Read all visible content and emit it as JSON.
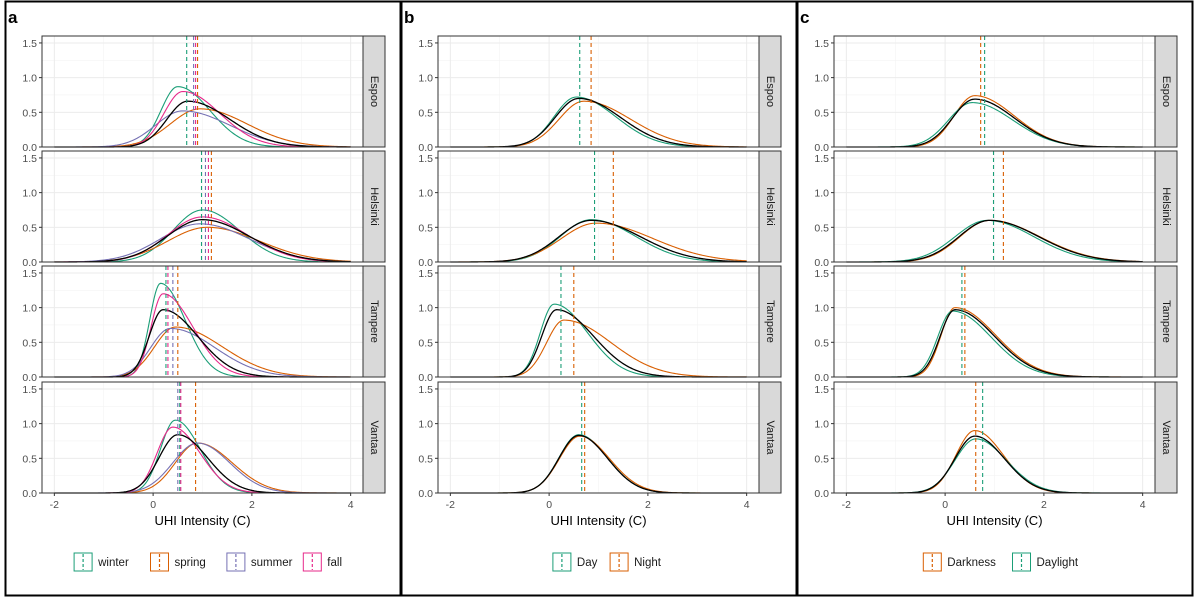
{
  "colors": {
    "panel_bg": "#ffffff",
    "grid": "#ebebeb",
    "strip_bg": "#d9d9d9",
    "border": "#333333",
    "overall": "#000000",
    "teal": "#1b9e77",
    "orange": "#d95f02",
    "purple": "#7570b3",
    "magenta": "#e7298a"
  },
  "chart_data": [
    {
      "type": "line",
      "panel_label": "a",
      "xlabel": "UHI Intensity (C)",
      "ylabel": "",
      "xlim": [
        -2,
        4
      ],
      "ylim": [
        0,
        1.5
      ],
      "x_ticks": [
        "-2",
        "0",
        "2",
        "4"
      ],
      "y_ticks": [
        "0.0",
        "0.5",
        "1.0",
        "1.5"
      ],
      "grid": true,
      "legend_position": "bottom",
      "legend": [
        {
          "label": "winter",
          "color": "#1b9e77"
        },
        {
          "label": "spring",
          "color": "#d95f02"
        },
        {
          "label": "summer",
          "color": "#7570b3"
        },
        {
          "label": "fall",
          "color": "#e7298a"
        }
      ],
      "facets": [
        {
          "label": "Espoo",
          "overall": {
            "mu": 0.7,
            "peak": 0.66,
            "sl": 0.42,
            "sr": 0.85
          },
          "series": [
            {
              "name": "winter",
              "color": "#1b9e77",
              "mu": 0.5,
              "peak": 0.87,
              "sl": 0.34,
              "sr": 0.65,
              "mean": 0.68
            },
            {
              "name": "spring",
              "color": "#d95f02",
              "mu": 0.95,
              "peak": 0.55,
              "sl": 0.6,
              "sr": 0.95,
              "mean": 0.9
            },
            {
              "name": "summer",
              "color": "#7570b3",
              "mu": 0.6,
              "peak": 0.52,
              "sl": 0.55,
              "sr": 0.95,
              "mean": 0.82
            },
            {
              "name": "fall",
              "color": "#e7298a",
              "mu": 0.6,
              "peak": 0.8,
              "sl": 0.38,
              "sr": 0.75,
              "mean": 0.86
            }
          ]
        },
        {
          "label": "Helsinki",
          "overall": {
            "mu": 1.0,
            "peak": 0.61,
            "sl": 0.72,
            "sr": 0.95
          },
          "series": [
            {
              "name": "winter",
              "color": "#1b9e77",
              "mu": 1.0,
              "peak": 0.75,
              "sl": 0.6,
              "sr": 0.75,
              "mean": 0.98
            },
            {
              "name": "spring",
              "color": "#d95f02",
              "mu": 1.1,
              "peak": 0.5,
              "sl": 0.8,
              "sr": 1.05,
              "mean": 1.18
            },
            {
              "name": "summer",
              "color": "#7570b3",
              "mu": 0.95,
              "peak": 0.55,
              "sl": 0.8,
              "sr": 1.0,
              "mean": 1.06
            },
            {
              "name": "fall",
              "color": "#e7298a",
              "mu": 1.0,
              "peak": 0.65,
              "sl": 0.7,
              "sr": 0.9,
              "mean": 1.12
            }
          ]
        },
        {
          "label": "Tampere",
          "overall": {
            "mu": 0.2,
            "peak": 0.97,
            "sl": 0.28,
            "sr": 0.7
          },
          "series": [
            {
              "name": "winter",
              "color": "#1b9e77",
              "mu": 0.15,
              "peak": 1.35,
              "sl": 0.22,
              "sr": 0.5,
              "mean": 0.26
            },
            {
              "name": "spring",
              "color": "#d95f02",
              "mu": 0.45,
              "peak": 0.72,
              "sl": 0.42,
              "sr": 0.95,
              "mean": 0.5
            },
            {
              "name": "summer",
              "color": "#7570b3",
              "mu": 0.35,
              "peak": 0.7,
              "sl": 0.4,
              "sr": 0.9,
              "mean": 0.4
            },
            {
              "name": "fall",
              "color": "#e7298a",
              "mu": 0.2,
              "peak": 1.2,
              "sl": 0.24,
              "sr": 0.6,
              "mean": 0.3
            }
          ]
        },
        {
          "label": "Vantaa",
          "overall": {
            "mu": 0.5,
            "peak": 0.84,
            "sl": 0.38,
            "sr": 0.6
          },
          "series": [
            {
              "name": "winter",
              "color": "#1b9e77",
              "mu": 0.45,
              "peak": 1.05,
              "sl": 0.3,
              "sr": 0.5,
              "mean": 0.54
            },
            {
              "name": "spring",
              "color": "#d95f02",
              "mu": 0.9,
              "peak": 0.72,
              "sl": 0.45,
              "sr": 0.7,
              "mean": 0.86
            },
            {
              "name": "summer",
              "color": "#7570b3",
              "mu": 0.9,
              "peak": 0.72,
              "sl": 0.5,
              "sr": 0.65,
              "mean": 0.5
            },
            {
              "name": "fall",
              "color": "#e7298a",
              "mu": 0.4,
              "peak": 0.95,
              "sl": 0.32,
              "sr": 0.55,
              "mean": 0.56
            }
          ]
        }
      ]
    },
    {
      "type": "line",
      "panel_label": "b",
      "xlabel": "UHI Intensity (C)",
      "ylabel": "",
      "xlim": [
        -2,
        4
      ],
      "ylim": [
        0,
        1.5
      ],
      "x_ticks": [
        "-2",
        "0",
        "2",
        "4"
      ],
      "y_ticks": [
        "0.0",
        "0.5",
        "1.0",
        "1.5"
      ],
      "grid": true,
      "legend_position": "bottom",
      "legend": [
        {
          "label": "Day",
          "color": "#1b9e77"
        },
        {
          "label": "Night",
          "color": "#d95f02"
        }
      ],
      "facets": [
        {
          "label": "Espoo",
          "overall": {
            "mu": 0.6,
            "peak": 0.7,
            "sl": 0.48,
            "sr": 0.85
          },
          "series": [
            {
              "name": "Day",
              "color": "#1b9e77",
              "mu": 0.55,
              "peak": 0.72,
              "sl": 0.45,
              "sr": 0.8,
              "mean": 0.62
            },
            {
              "name": "Night",
              "color": "#d95f02",
              "mu": 0.7,
              "peak": 0.66,
              "sl": 0.5,
              "sr": 0.95,
              "mean": 0.85
            }
          ]
        },
        {
          "label": "Helsinki",
          "overall": {
            "mu": 0.85,
            "peak": 0.6,
            "sl": 0.65,
            "sr": 1.0
          },
          "series": [
            {
              "name": "Day",
              "color": "#1b9e77",
              "mu": 0.85,
              "peak": 0.61,
              "sl": 0.62,
              "sr": 0.9,
              "mean": 0.92
            },
            {
              "name": "Night",
              "color": "#d95f02",
              "mu": 0.95,
              "peak": 0.56,
              "sl": 0.7,
              "sr": 1.15,
              "mean": 1.3
            }
          ]
        },
        {
          "label": "Tampere",
          "overall": {
            "mu": 0.15,
            "peak": 0.97,
            "sl": 0.3,
            "sr": 0.75
          },
          "series": [
            {
              "name": "Day",
              "color": "#1b9e77",
              "mu": 0.1,
              "peak": 1.05,
              "sl": 0.28,
              "sr": 0.68,
              "mean": 0.24
            },
            {
              "name": "Night",
              "color": "#d95f02",
              "mu": 0.3,
              "peak": 0.82,
              "sl": 0.35,
              "sr": 0.95,
              "mean": 0.5
            }
          ]
        },
        {
          "label": "Vantaa",
          "overall": {
            "mu": 0.6,
            "peak": 0.83,
            "sl": 0.4,
            "sr": 0.58
          },
          "series": [
            {
              "name": "Day",
              "color": "#1b9e77",
              "mu": 0.6,
              "peak": 0.84,
              "sl": 0.4,
              "sr": 0.58,
              "mean": 0.66
            },
            {
              "name": "Night",
              "color": "#d95f02",
              "mu": 0.62,
              "peak": 0.82,
              "sl": 0.41,
              "sr": 0.6,
              "mean": 0.72
            }
          ]
        }
      ]
    },
    {
      "type": "line",
      "panel_label": "c",
      "xlabel": "UHI Intensity (C)",
      "ylabel": "",
      "xlim": [
        -2,
        4
      ],
      "ylim": [
        0,
        1.5
      ],
      "x_ticks": [
        "-2",
        "0",
        "2",
        "4"
      ],
      "y_ticks": [
        "0.0",
        "0.5",
        "1.0",
        "1.5"
      ],
      "grid": true,
      "legend_position": "bottom",
      "legend": [
        {
          "label": "Darkness",
          "color": "#d95f02"
        },
        {
          "label": "Daylight",
          "color": "#1b9e77"
        }
      ],
      "facets": [
        {
          "label": "Espoo",
          "overall": {
            "mu": 0.6,
            "peak": 0.69,
            "sl": 0.45,
            "sr": 0.8
          },
          "series": [
            {
              "name": "Darkness",
              "color": "#d95f02",
              "mu": 0.6,
              "peak": 0.74,
              "sl": 0.42,
              "sr": 0.8,
              "mean": 0.72
            },
            {
              "name": "Daylight",
              "color": "#1b9e77",
              "mu": 0.55,
              "peak": 0.64,
              "sl": 0.48,
              "sr": 0.82,
              "mean": 0.8
            }
          ]
        },
        {
          "label": "Helsinki",
          "overall": {
            "mu": 0.9,
            "peak": 0.6,
            "sl": 0.62,
            "sr": 1.0
          },
          "series": [
            {
              "name": "Darkness",
              "color": "#d95f02",
              "mu": 0.9,
              "peak": 0.6,
              "sl": 0.6,
              "sr": 1.02,
              "mean": 1.18
            },
            {
              "name": "Daylight",
              "color": "#1b9e77",
              "mu": 0.85,
              "peak": 0.6,
              "sl": 0.65,
              "sr": 0.95,
              "mean": 0.98
            }
          ]
        },
        {
          "label": "Tampere",
          "overall": {
            "mu": 0.2,
            "peak": 0.97,
            "sl": 0.3,
            "sr": 0.8
          },
          "series": [
            {
              "name": "Darkness",
              "color": "#d95f02",
              "mu": 0.2,
              "peak": 1.0,
              "sl": 0.28,
              "sr": 0.82,
              "mean": 0.4
            },
            {
              "name": "Daylight",
              "color": "#1b9e77",
              "mu": 0.15,
              "peak": 0.95,
              "sl": 0.3,
              "sr": 0.78,
              "mean": 0.34
            }
          ]
        },
        {
          "label": "Vantaa",
          "overall": {
            "mu": 0.6,
            "peak": 0.82,
            "sl": 0.4,
            "sr": 0.6
          },
          "series": [
            {
              "name": "Darkness",
              "color": "#d95f02",
              "mu": 0.6,
              "peak": 0.9,
              "sl": 0.38,
              "sr": 0.58,
              "mean": 0.62
            },
            {
              "name": "Daylight",
              "color": "#1b9e77",
              "mu": 0.62,
              "peak": 0.78,
              "sl": 0.42,
              "sr": 0.62,
              "mean": 0.76
            }
          ]
        }
      ]
    }
  ]
}
